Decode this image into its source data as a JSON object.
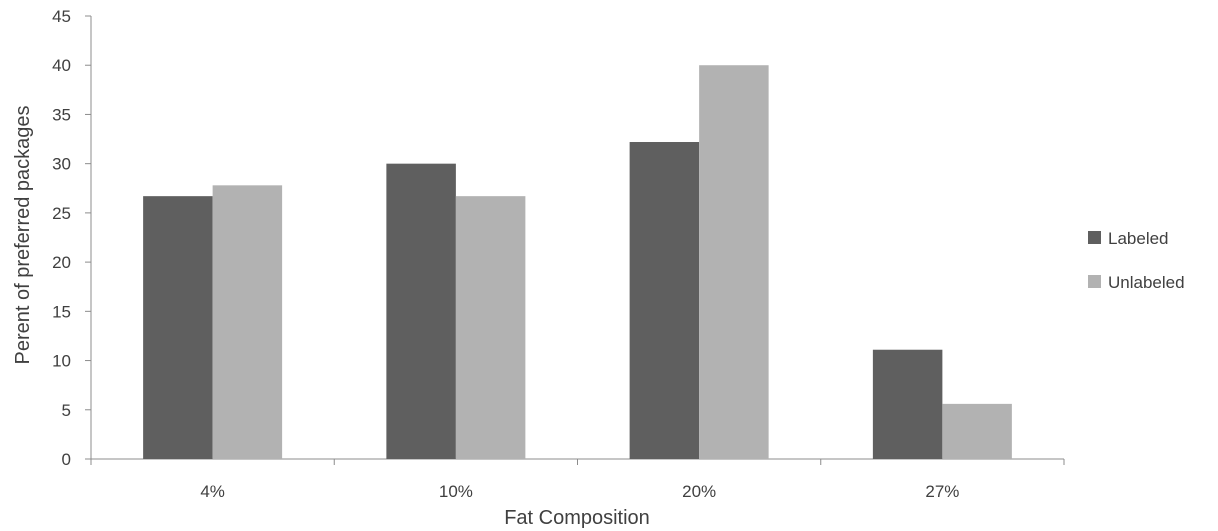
{
  "chart_data": {
    "type": "bar",
    "title": "",
    "xlabel": "Fat Composition",
    "ylabel": "Perent of preferred packages",
    "categories": [
      "4%",
      "10%",
      "20%",
      "27%"
    ],
    "series": [
      {
        "name": "Labeled",
        "color": "#5f5f5f",
        "values": [
          26.7,
          30.0,
          32.2,
          11.1
        ]
      },
      {
        "name": "Unlabeled",
        "color": "#b2b2b2",
        "values": [
          27.8,
          26.7,
          40.0,
          5.6
        ]
      }
    ],
    "ylim": [
      0,
      45
    ],
    "yticks": [
      "0",
      "5",
      "10",
      "15",
      "20",
      "25",
      "30",
      "35",
      "40",
      "45"
    ],
    "grid": false,
    "legend_position": "right"
  }
}
